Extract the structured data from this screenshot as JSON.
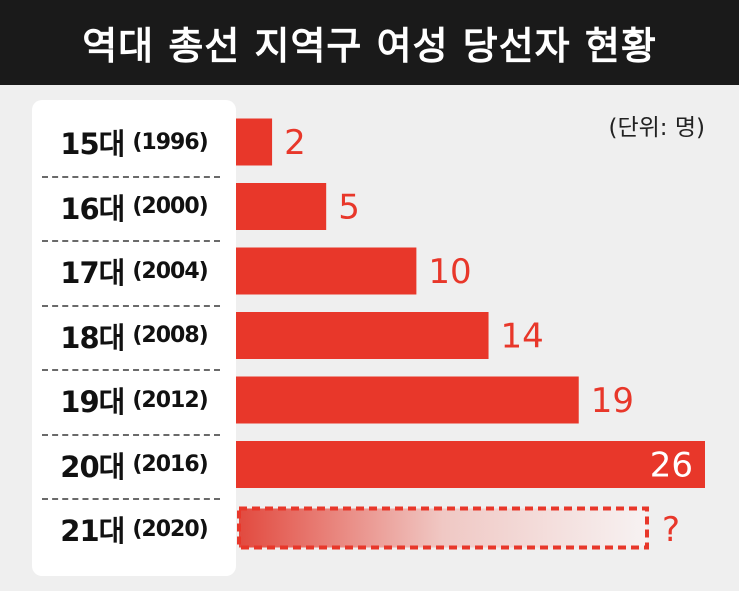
{
  "title": "역대 총선 지역구 여성 당선자 현황",
  "unit_note": "(단위: 명)",
  "colors": {
    "bar": "#e8372a",
    "title_bg": "#1a1a1a",
    "background": "#efefef",
    "panel": "#ffffff"
  },
  "chart_data": {
    "type": "bar",
    "orientation": "horizontal",
    "categories": [
      {
        "gen": "15대",
        "year": "(1996)"
      },
      {
        "gen": "16대",
        "year": "(2000)"
      },
      {
        "gen": "17대",
        "year": "(2004)"
      },
      {
        "gen": "18대",
        "year": "(2008)"
      },
      {
        "gen": "19대",
        "year": "(2012)"
      },
      {
        "gen": "20대",
        "year": "(2016)"
      },
      {
        "gen": "21대",
        "year": "(2020)"
      }
    ],
    "values": [
      2,
      5,
      10,
      14,
      19,
      26,
      null
    ],
    "value_labels": [
      "2",
      "5",
      "10",
      "14",
      "19",
      "26",
      "?"
    ],
    "xlim": [
      0,
      26
    ]
  }
}
